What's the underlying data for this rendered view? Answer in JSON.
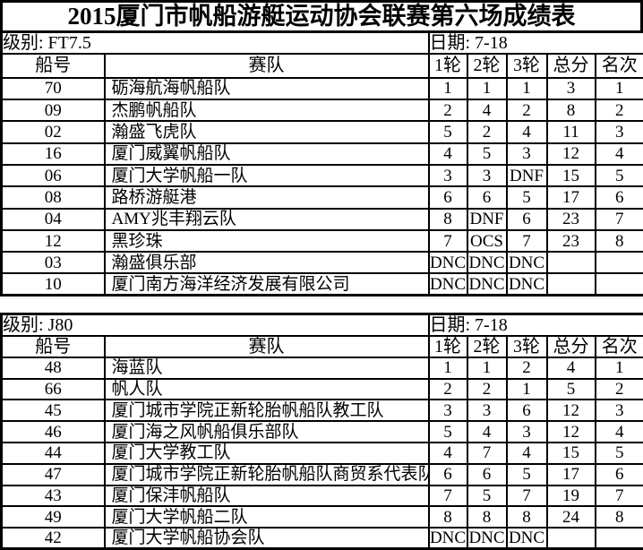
{
  "title": "2015厦门市帆船游艇运动协会联赛第六场成绩表",
  "tables": [
    {
      "class_label": "级别: FT7.5",
      "date_label": "日期: 7-18",
      "columns": [
        "船号",
        "赛队",
        "1轮",
        "2轮",
        "3轮",
        "总分",
        "名次"
      ],
      "rows": [
        [
          "70",
          "砺海航海帆船队",
          "1",
          "1",
          "1",
          "3",
          "1"
        ],
        [
          "09",
          "杰鹏帆船队",
          "2",
          "4",
          "2",
          "8",
          "2"
        ],
        [
          "02",
          "瀚盛飞虎队",
          "5",
          "2",
          "4",
          "11",
          "3"
        ],
        [
          "16",
          "厦门威翼帆船队",
          "4",
          "5",
          "3",
          "12",
          "4"
        ],
        [
          "06",
          "厦门大学帆船一队",
          "3",
          "3",
          "DNF",
          "15",
          "5"
        ],
        [
          "08",
          "路桥游艇港",
          "6",
          "6",
          "5",
          "17",
          "6"
        ],
        [
          "04",
          "AMY兆丰翔云队",
          "8",
          "DNF",
          "6",
          "23",
          "7"
        ],
        [
          "12",
          "黑珍珠",
          "7",
          "OCS",
          "7",
          "23",
          "8"
        ],
        [
          "03",
          "瀚盛俱乐部",
          "DNC",
          "DNC",
          "DNC",
          "",
          ""
        ],
        [
          "10",
          "厦门南方海洋经济发展有限公司",
          "DNC",
          "DNC",
          "DNC",
          "",
          ""
        ]
      ]
    },
    {
      "class_label": "级别: J80",
      "date_label": "日期: 7-18",
      "columns": [
        "船号",
        "赛队",
        "1轮",
        "2轮",
        "3轮",
        "总分",
        "名次"
      ],
      "rows": [
        [
          "48",
          "海蓝队",
          "1",
          "1",
          "2",
          "4",
          "1"
        ],
        [
          "66",
          "帆人队",
          "2",
          "2",
          "1",
          "5",
          "2"
        ],
        [
          "45",
          "厦门城市学院正新轮胎帆船队教工队",
          "3",
          "3",
          "6",
          "12",
          "3"
        ],
        [
          "46",
          "厦门海之风帆船俱乐部队",
          "5",
          "4",
          "3",
          "12",
          "4"
        ],
        [
          "44",
          "厦门大学教工队",
          "4",
          "7",
          "4",
          "15",
          "5"
        ],
        [
          "47",
          "厦门城市学院正新轮胎帆船队商贸系代表队",
          "6",
          "6",
          "5",
          "17",
          "6"
        ],
        [
          "43",
          "厦门保沣帆船队",
          "7",
          "5",
          "7",
          "19",
          "7"
        ],
        [
          "49",
          "厦门大学帆船二队",
          "8",
          "8",
          "8",
          "24",
          "8"
        ],
        [
          "42",
          "厦门大学帆船协会队",
          "DNC",
          "DNC",
          "DNC",
          "",
          ""
        ]
      ]
    }
  ]
}
